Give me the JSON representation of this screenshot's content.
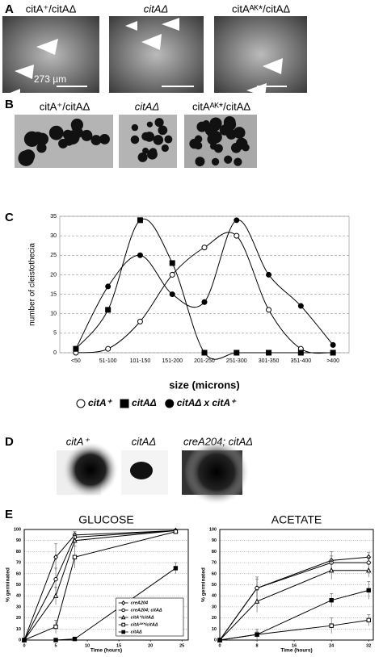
{
  "panels": {
    "A": {
      "letter": "A",
      "labels": [
        "citA⁺/citAΔ",
        "citAΔ",
        "citAᴬᴷ*/citAΔ"
      ],
      "scale_label": "273 µm"
    },
    "B": {
      "letter": "B",
      "labels": [
        "citA⁺/citAΔ",
        "citAΔ",
        "citAᴬᴷ*/citAΔ"
      ]
    },
    "D": {
      "letter": "D",
      "labels": [
        "citA⁺",
        "citAΔ",
        "creA204; citAΔ"
      ]
    }
  },
  "chart_data": [
    {
      "type": "line",
      "panel": "C",
      "smooth": true,
      "grid": true,
      "legend": "bottom",
      "ylabel": "number of cleistothecia",
      "xlabel": "size (microns)",
      "categories": [
        "<50",
        "51-100",
        "101-150",
        "151-200",
        "201-250",
        "251-300",
        "301-350",
        "351-400",
        ">400"
      ],
      "ylim": [
        0,
        35
      ],
      "yticks": [
        0,
        5,
        10,
        15,
        20,
        25,
        30,
        35
      ],
      "series": [
        {
          "name": "citA⁺",
          "color": "#000000",
          "marker": "circle-open",
          "values": [
            0,
            1,
            8,
            20,
            27,
            30,
            11,
            1,
            0
          ]
        },
        {
          "name": "citAΔ",
          "color": "#000000",
          "marker": "square-filled",
          "values": [
            1,
            11,
            34,
            23,
            0,
            0,
            0,
            0,
            0
          ]
        },
        {
          "name": "citAΔ x citA⁺",
          "color": "#000000",
          "marker": "circle-filled",
          "values": [
            1,
            17,
            25,
            15,
            13,
            34,
            20,
            12,
            2
          ]
        }
      ]
    },
    {
      "type": "line",
      "panel": "E",
      "title": "GLUCOSE",
      "grid": true,
      "legend": "lower right",
      "ylabel": "% germinated",
      "xlabel": "Time (hours)",
      "x": [
        0,
        5,
        8,
        24
      ],
      "xlim": [
        0,
        26
      ],
      "xticks": [
        0,
        5,
        10,
        15,
        20,
        25
      ],
      "ylim": [
        0,
        100
      ],
      "yticks": [
        0,
        10,
        20,
        30,
        40,
        50,
        60,
        70,
        80,
        90,
        100
      ],
      "series": [
        {
          "name": "creA204",
          "color": "#000000",
          "marker": "diamond-open",
          "values": [
            0,
            75,
            95,
            99
          ],
          "errors": [
            0,
            12,
            3,
            1
          ]
        },
        {
          "name": "creA204; citAΔ",
          "color": "#000000",
          "marker": "circle-open",
          "values": [
            0,
            55,
            93,
            99
          ],
          "errors": [
            0,
            10,
            4,
            1
          ]
        },
        {
          "name": "citA⁺/citAΔ",
          "color": "#000000",
          "marker": "triangle-open",
          "values": [
            0,
            40,
            90,
            99
          ],
          "errors": [
            0,
            8,
            5,
            1
          ]
        },
        {
          "name": "citAᴬᴷ*/citAΔ",
          "color": "#000000",
          "marker": "square-open",
          "values": [
            0,
            12,
            75,
            98
          ],
          "errors": [
            0,
            6,
            10,
            2
          ]
        },
        {
          "name": "citAΔ",
          "color": "#000000",
          "marker": "square-filled",
          "values": [
            0,
            0,
            1,
            65
          ],
          "errors": [
            0,
            1,
            1,
            5
          ]
        }
      ]
    },
    {
      "type": "line",
      "panel": "",
      "title": "ACETATE",
      "grid": true,
      "ylabel": "% germinated",
      "xlabel": "Time (hours)",
      "x": [
        0,
        8,
        24,
        32
      ],
      "xlim": [
        0,
        33
      ],
      "xticks": [
        0,
        8,
        16,
        24,
        32
      ],
      "ylim": [
        0,
        100
      ],
      "yticks": [
        0,
        10,
        20,
        30,
        40,
        50,
        60,
        70,
        80,
        90,
        100
      ],
      "series": [
        {
          "color": "#000000",
          "marker": "diamond-open",
          "values": [
            0,
            47,
            72,
            75
          ],
          "errors": [
            0,
            10,
            8,
            4
          ]
        },
        {
          "color": "#000000",
          "marker": "circle-open",
          "values": [
            0,
            47,
            70,
            70
          ],
          "errors": [
            0,
            8,
            6,
            5
          ]
        },
        {
          "color": "#000000",
          "marker": "triangle-open",
          "values": [
            0,
            35,
            63,
            63
          ],
          "errors": [
            0,
            10,
            8,
            6
          ]
        },
        {
          "color": "#000000",
          "marker": "square-open",
          "values": [
            0,
            5,
            13,
            18
          ],
          "errors": [
            0,
            5,
            7,
            5
          ]
        },
        {
          "color": "#000000",
          "marker": "square-filled",
          "values": [
            0,
            5,
            36,
            45
          ],
          "errors": [
            0,
            3,
            6,
            8
          ]
        }
      ]
    }
  ]
}
